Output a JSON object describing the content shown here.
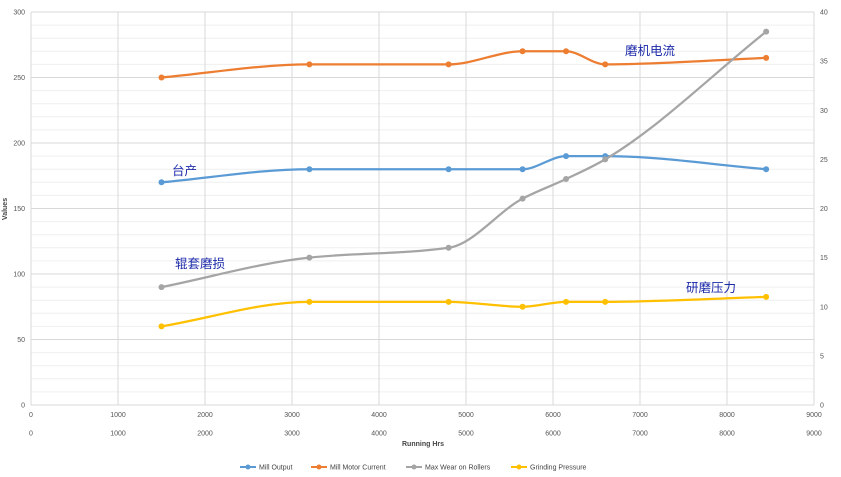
{
  "chart_data": {
    "type": "line",
    "xlabel": "Running Hrs",
    "ylabel": "Values",
    "xlim": [
      0,
      9000
    ],
    "ylim": [
      0,
      300
    ],
    "y2lim": [
      0,
      40
    ],
    "x_ticks": [
      0,
      1000,
      2000,
      3000,
      4000,
      5000,
      6000,
      7000,
      8000,
      9000
    ],
    "y_ticks": [
      0,
      50,
      100,
      150,
      200,
      250,
      300
    ],
    "y2_ticks": [
      0,
      5,
      10,
      15,
      20,
      25,
      30,
      35,
      40
    ],
    "grid": true,
    "legend_position": "bottom",
    "series": [
      {
        "name": "Mill Output",
        "color": "#5b9bd5",
        "axis": "left",
        "x": [
          1500,
          3200,
          4800,
          5650,
          6150,
          6600,
          8450
        ],
        "values": [
          170,
          180,
          180,
          180,
          190,
          190,
          180
        ]
      },
      {
        "name": "Mill Motor Current",
        "color": "#ed7d31",
        "axis": "left",
        "x": [
          1500,
          3200,
          4800,
          5650,
          6150,
          6600,
          8450
        ],
        "values": [
          250,
          260,
          260,
          270,
          270,
          260,
          265
        ]
      },
      {
        "name": "Max Wear on Rollers",
        "color": "#a5a5a5",
        "axis": "right",
        "x": [
          1500,
          3200,
          4800,
          5650,
          6150,
          6600,
          8450
        ],
        "values": [
          12,
          15,
          16,
          21,
          23,
          25,
          38
        ]
      },
      {
        "name": "Grinding Pressure",
        "color": "#ffc000",
        "axis": "right",
        "x": [
          1500,
          3200,
          4800,
          5650,
          6150,
          6600,
          8450
        ],
        "values": [
          8,
          10.5,
          10.5,
          10,
          10.5,
          10.5,
          11
        ]
      }
    ],
    "annotations": [
      {
        "text": "磨机电流"
      },
      {
        "text": "台产"
      },
      {
        "text": "辊套磨损"
      },
      {
        "text": "研磨压力"
      }
    ]
  }
}
